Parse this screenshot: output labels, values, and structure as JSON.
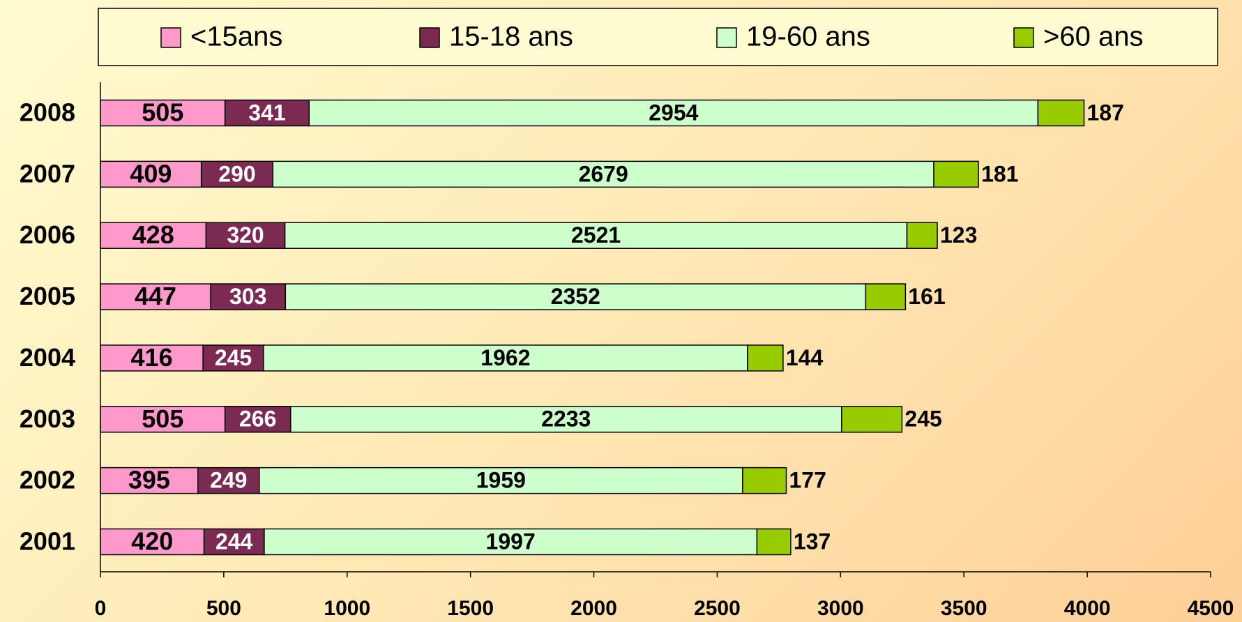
{
  "chart_data": {
    "type": "stacked-barh",
    "categories": [
      "2001",
      "2002",
      "2003",
      "2004",
      "2005",
      "2006",
      "2007",
      "2008"
    ],
    "series": [
      {
        "name": "<15ans",
        "color": "#ff99cc",
        "values": [
          420,
          395,
          505,
          416,
          447,
          428,
          409,
          505
        ]
      },
      {
        "name": "15-18 ans",
        "color": "#7b2b52",
        "values": [
          244,
          249,
          266,
          245,
          303,
          320,
          290,
          341
        ]
      },
      {
        "name": "19-60 ans",
        "color": "#ccffcc",
        "values": [
          1997,
          1959,
          2233,
          1962,
          2352,
          2521,
          2679,
          2954
        ]
      },
      {
        "name": ">60 ans",
        "color": "#99cc00",
        "values": [
          137,
          177,
          245,
          144,
          161,
          123,
          181,
          187
        ]
      }
    ],
    "xlim": [
      0,
      4500
    ],
    "xticks": [
      0,
      500,
      1000,
      1500,
      2000,
      2500,
      3000,
      3500,
      4000,
      4500
    ],
    "legend": "top"
  }
}
